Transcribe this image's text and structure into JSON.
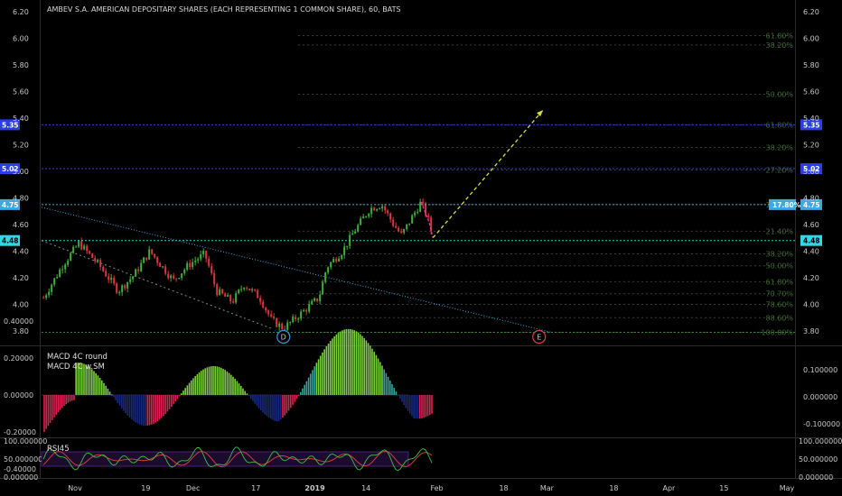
{
  "title": "AMBEV S.A. AMERICAN DEPOSITARY SHARES (EACH REPRESENTING 1 COMMON SHARE), 60, BATS",
  "colors": {
    "background": "#000000",
    "candle_up": "#3fae3a",
    "candle_down": "#d9363e",
    "price_line_cyan": "#3ea8e0",
    "price_line_blue": "#2a3fe0",
    "fib_text": "#3c6b2f",
    "fib_line": "#3a3a3a",
    "wave_marker_d": "#2f9bd8",
    "wave_marker_e": "#e03b4a",
    "projection_arrow": "#d6e03a",
    "rsi_line": "#3fbf3a",
    "rsi_signal": "#e04040",
    "rsi_band": "#5a2a8a"
  },
  "chart_data": [
    {
      "type": "candlestick",
      "title": "AMBEV S.A. AMERICAN DEPOSITARY SHARES (EACH REPRESENTING 1 COMMON SHARE), 60, BATS",
      "ylim": [
        3.75,
        6.25
      ],
      "y_ticks": [
        "6.20",
        "6.00",
        "5.80",
        "5.60",
        "5.40",
        "5.20",
        "5.00",
        "4.80",
        "4.60",
        "4.40",
        "4.20",
        "4.00",
        "3.80"
      ],
      "x_ticks": [
        "Nov",
        "19",
        "Dec",
        "17",
        "2019",
        "14",
        "Feb",
        "18",
        "Mar",
        "18",
        "Apr",
        "15",
        "May"
      ],
      "price_path": [
        {
          "x": "Oct 24",
          "y": 4.05
        },
        {
          "x": "Oct 29",
          "y": 4.3
        },
        {
          "x": "Nov 2",
          "y": 4.46
        },
        {
          "x": "Nov 7",
          "y": 4.3
        },
        {
          "x": "Nov 12",
          "y": 4.1
        },
        {
          "x": "Nov 16",
          "y": 4.22
        },
        {
          "x": "Nov 20",
          "y": 4.4
        },
        {
          "x": "Nov 26",
          "y": 4.18
        },
        {
          "x": "Nov 30",
          "y": 4.3
        },
        {
          "x": "Dec 4",
          "y": 4.38
        },
        {
          "x": "Dec 7",
          "y": 4.1
        },
        {
          "x": "Dec 11",
          "y": 4.02
        },
        {
          "x": "Dec 14",
          "y": 4.15
        },
        {
          "x": "Dec 18",
          "y": 4.05
        },
        {
          "x": "Dec 21",
          "y": 3.88
        },
        {
          "x": "Dec 24",
          "y": 3.82
        },
        {
          "x": "Dec 28",
          "y": 3.92
        },
        {
          "x": "Jan 2",
          "y": 4.05
        },
        {
          "x": "Jan 4",
          "y": 4.28
        },
        {
          "x": "Jan 8",
          "y": 4.4
        },
        {
          "x": "Jan 11",
          "y": 4.55
        },
        {
          "x": "Jan 15",
          "y": 4.72
        },
        {
          "x": "Jan 18",
          "y": 4.75
        },
        {
          "x": "Jan 21",
          "y": 4.6
        },
        {
          "x": "Jan 23",
          "y": 4.52
        },
        {
          "x": "Jan 25",
          "y": 4.62
        },
        {
          "x": "Jan 28",
          "y": 4.77
        },
        {
          "x": "Jan 30",
          "y": 4.62
        },
        {
          "x": "Jan 31",
          "y": 4.5
        }
      ],
      "projection": [
        {
          "x": "Jan 31",
          "y": 4.5
        },
        {
          "x": "Feb 28",
          "y": 5.46
        }
      ],
      "price_lines": [
        {
          "label": "5.35",
          "value": 5.35,
          "color": "#2a3fe0"
        },
        {
          "label": "5.02",
          "value": 5.02,
          "color": "#2a3fe0"
        },
        {
          "label": "4.75",
          "value": 4.75,
          "color": "#3ea8e0"
        },
        {
          "label": "4.48",
          "value": 4.48,
          "color": "#33d6e6"
        }
      ],
      "fib_levels": [
        {
          "label": "61.80%",
          "value": 6.02
        },
        {
          "label": "38.20%",
          "value": 5.95
        },
        {
          "label": "50.00%",
          "value": 5.58
        },
        {
          "label": "61.80%",
          "value": 5.35
        },
        {
          "label": "38.20%",
          "value": 5.18
        },
        {
          "label": "27.20%",
          "value": 5.01
        },
        {
          "label": "17.80%",
          "value": 4.75
        },
        {
          "label": "21.40%",
          "value": 4.55
        },
        {
          "label": "38.20%",
          "value": 4.38
        },
        {
          "label": "50.00%",
          "value": 4.29
        },
        {
          "label": "61.80%",
          "value": 4.17
        },
        {
          "label": "70.70%",
          "value": 4.08
        },
        {
          "label": "78.60%",
          "value": 4.0
        },
        {
          "label": "88.60%",
          "value": 3.9
        },
        {
          "label": "100.00%",
          "value": 3.79
        }
      ],
      "wave_labels": [
        {
          "label": "D",
          "x": "Dec 24",
          "y": 3.79
        },
        {
          "label": "E",
          "x": "Feb 27",
          "y": 3.79
        }
      ]
    },
    {
      "type": "bar",
      "series": [
        {
          "name": "MACD 4C round"
        },
        {
          "name": "MACD 4C w.SM"
        }
      ],
      "y_ticks_left": [
        "0.40000",
        "0.20000",
        "0.00000",
        "-0.20000",
        "-0.40000"
      ],
      "y_ticks_right": [
        "0.100000",
        "0.000000",
        "-0.100000"
      ],
      "ylim": [
        -0.45,
        0.45
      ]
    },
    {
      "type": "line",
      "series": [
        {
          "name": "RSI45"
        }
      ],
      "y_ticks_left": [
        "100.000000",
        "50.000000",
        "0.000000"
      ],
      "y_ticks_right": [
        "100.000000",
        "50.000000",
        "0.000000"
      ],
      "ylim": [
        0,
        100
      ],
      "band": [
        30,
        70
      ]
    }
  ]
}
